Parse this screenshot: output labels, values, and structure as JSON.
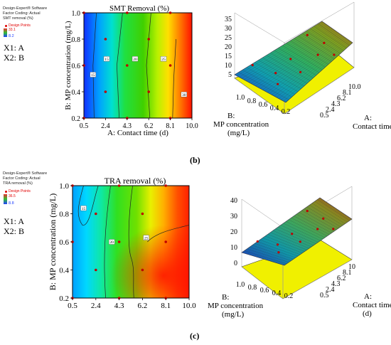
{
  "panels": [
    {
      "id": "b",
      "software": "Design-Expert® Software",
      "factor_coding": "Factor Coding: Actual",
      "response": "SMT removal (%)",
      "design_points": "Design Points",
      "legend_high": "33.1",
      "legend_low": "8.2",
      "x1": "X1: A",
      "x2": "X2: B",
      "caption": "(b)"
    },
    {
      "id": "c",
      "software": "Design-Expert® Software",
      "factor_coding": "Factor Coding: Actual",
      "response": "TRA removal (%)",
      "design_points": "Design Points",
      "legend_high": "36.5",
      "legend_low": "8.8",
      "x1": "X1: A",
      "x2": "X2: B",
      "caption": "(c)"
    }
  ],
  "chart_data": [
    {
      "type": "heatmap",
      "title": "SMT Removal (%)",
      "xlabel": "A: Contact time (d)",
      "ylabel": "B: MP concentration (mg/L)",
      "x_ticks": [
        "0.5",
        "2.4",
        "4.3",
        "6.2",
        "8.1",
        "10.0"
      ],
      "y_ticks": [
        "0.2",
        "0.4",
        "0.6",
        "0.8",
        "1.0"
      ],
      "xlim": [
        0.5,
        10.0
      ],
      "ylim": [
        0.2,
        1.0
      ],
      "contour_labels": [
        "15",
        "20",
        "25",
        "30"
      ],
      "design_points": [
        [
          0.5,
          1.0
        ],
        [
          4.3,
          1.0
        ],
        [
          8.1,
          1.0
        ],
        [
          2.4,
          0.8
        ],
        [
          6.2,
          0.8
        ],
        [
          4.3,
          0.6
        ],
        [
          0.5,
          0.6
        ],
        [
          8.1,
          0.6
        ],
        [
          2.4,
          0.4
        ],
        [
          6.2,
          0.4
        ],
        [
          0.5,
          0.2
        ],
        [
          4.3,
          0.2
        ],
        [
          8.1,
          0.2
        ]
      ]
    },
    {
      "type": "surface",
      "zlabel": "",
      "z_ticks": [
        "5",
        "10",
        "15",
        "20",
        "25",
        "30",
        "35"
      ],
      "b_axis_label": "B: MP concentration (mg/L)",
      "b_ticks": [
        "1.0",
        "0.8",
        "0.6",
        "0.4",
        "0.2"
      ],
      "a_axis_label": "A: Contact time (d)",
      "a_ticks": [
        "10.0",
        "8.1",
        "6.2",
        "4.3",
        "2.4",
        "0.5"
      ]
    },
    {
      "type": "heatmap",
      "title": "TRA removal (%)",
      "xlabel": "A: Contact time (d)",
      "ylabel": "B: MP concentration (mg/L)",
      "x_ticks": [
        "0.5",
        "2.4",
        "4.3",
        "6.2",
        "8.1",
        "10.0"
      ],
      "y_ticks": [
        "0.2",
        "0.4",
        "0.6",
        "0.8",
        "1.0"
      ],
      "xlim": [
        0.5,
        10.0
      ],
      "ylim": [
        0.2,
        1.0
      ],
      "contour_labels": [
        "15",
        "20",
        "25"
      ],
      "design_points": [
        [
          0.5,
          1.0
        ],
        [
          4.3,
          1.0
        ],
        [
          8.1,
          1.0
        ],
        [
          2.4,
          0.8
        ],
        [
          6.2,
          0.8
        ],
        [
          4.3,
          0.6
        ],
        [
          0.5,
          0.6
        ],
        [
          8.1,
          0.6
        ],
        [
          2.4,
          0.4
        ],
        [
          6.2,
          0.4
        ],
        [
          0.5,
          0.2
        ],
        [
          4.3,
          0.2
        ],
        [
          8.1,
          0.2
        ]
      ]
    },
    {
      "type": "surface",
      "zlabel": "",
      "z_ticks": [
        "0",
        "10",
        "20",
        "30",
        "40"
      ],
      "b_axis_label": "B: MP concentration (mg/L)",
      "b_ticks": [
        "1.0",
        "0.8",
        "0.6",
        "0.4",
        "0.2"
      ],
      "a_axis_label": "A: Contact time (d)",
      "a_ticks": [
        "10",
        "8.1",
        "6.2",
        "4.3",
        "2.4",
        "0.5"
      ]
    }
  ]
}
